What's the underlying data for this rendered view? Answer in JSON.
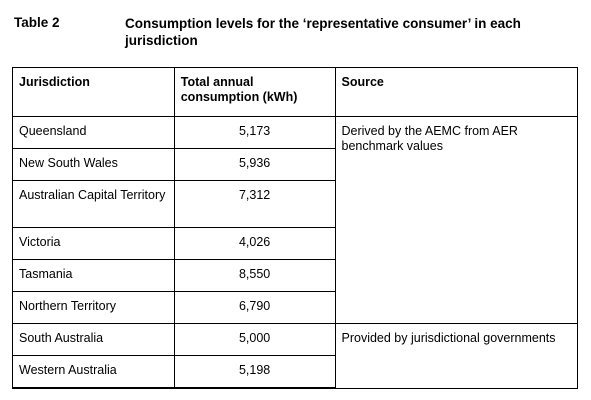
{
  "caption": {
    "label": "Table 2",
    "title": "Consumption levels for the ‘representative consumer’ in each jurisdiction"
  },
  "table": {
    "headers": [
      "Jurisdiction",
      "Total annual consumption (kWh)",
      "Source"
    ],
    "rows": [
      {
        "jurisdiction": "Queensland",
        "consumption": "5,173"
      },
      {
        "jurisdiction": "New South Wales",
        "consumption": "5,936"
      },
      {
        "jurisdiction": "Australian Capital Territory",
        "consumption": "7,312"
      },
      {
        "jurisdiction": "Victoria",
        "consumption": "4,026"
      },
      {
        "jurisdiction": "Tasmania",
        "consumption": "8,550"
      },
      {
        "jurisdiction": "Northern Territory",
        "consumption": "6,790"
      },
      {
        "jurisdiction": "South Australia",
        "consumption": "5,000"
      },
      {
        "jurisdiction": "Western Australia",
        "consumption": "5,198"
      }
    ],
    "sources": [
      "Derived by the AEMC from AER benchmark values",
      "Provided by jurisdictional governments"
    ]
  }
}
